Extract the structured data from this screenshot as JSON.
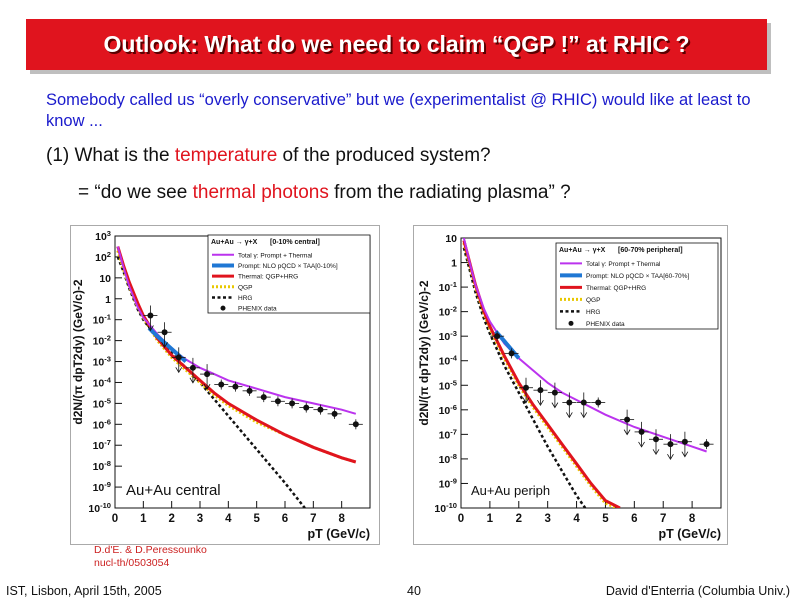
{
  "slide": {
    "title": "Outlook: What do we need to claim “QGP !” at RHIC ?",
    "intro": "Somebody called us “overly conservative” but we (experimentalist @ RHIC) would like at least to know ...",
    "q1_prefix": "(1) What is the ",
    "q1_highlight": "temperature",
    "q1_suffix": " of the produced system?",
    "q2_prefix": "= “do we see ",
    "q2_highlight": "thermal photons",
    "q2_suffix": " from the radiating plasma” ?",
    "credit_line1": "D.d'E. & D.Peressounko",
    "credit_line2": "nucl-th/0503054",
    "footer_left": "IST, Lisbon, April 15th, 2005",
    "footer_page": "40",
    "footer_right": "David d'Enterria (Columbia Univ.)",
    "colors": {
      "title_bg": "#e0141e",
      "intro_text": "#1a1acc",
      "highlight": "#e0141e"
    }
  },
  "chart_data": [
    {
      "type": "line",
      "panel_label": "Au+Au central",
      "xlabel": "pT (GeV/c)",
      "ylabel": "d2N/(π dpT2dy) (GeV/c)-2",
      "xlim": [
        0,
        9
      ],
      "ylim_log10": [
        -10,
        3
      ],
      "log_y": true,
      "x_ticks": [
        "0",
        "1",
        "2",
        "3",
        "4",
        "5",
        "6",
        "7",
        "8"
      ],
      "y_ticks": [
        "10-10",
        "10-9",
        "10-8",
        "10-7",
        "10-6",
        "10-5",
        "10-4",
        "10-3",
        "10-2",
        "10-1",
        "1",
        "10",
        "102",
        "103"
      ],
      "legend": {
        "header_main": "Au+Au → γ+X",
        "header_sub": "[0-10% central]",
        "entries": [
          "Total γ: Prompt + Thermal",
          "Prompt: NLO pQCD × TAA[0-10%]",
          "Thermal: QGP+HRG",
          "QGP",
          "HRG",
          "PHENIX data"
        ]
      },
      "series": [
        {
          "name": "Total γ: Prompt + Thermal",
          "color": "#bb33ee",
          "x": [
            0.1,
            0.3,
            0.5,
            0.8,
            1.0,
            1.5,
            2.0,
            2.5,
            3.0,
            3.5,
            4.0,
            5.0,
            6.0,
            7.0,
            8.0,
            8.5
          ],
          "logy": [
            2.5,
            1.5,
            0.6,
            -0.4,
            -0.9,
            -1.7,
            -2.4,
            -2.9,
            -3.3,
            -3.6,
            -3.9,
            -4.3,
            -4.7,
            -5.0,
            -5.3,
            -5.5
          ]
        },
        {
          "name": "Prompt: NLO pQCD × TAA[0-10%]",
          "color": "#1f77d4",
          "x": [
            1.2,
            1.5,
            2.0,
            2.5
          ],
          "logy": [
            -1.4,
            -1.8,
            -2.4,
            -3.0
          ]
        },
        {
          "name": "Thermal: QGP+HRG",
          "color": "#e0141e",
          "x": [
            0.1,
            0.3,
            0.5,
            0.8,
            1.0,
            1.5,
            2.0,
            2.5,
            3.0,
            3.5,
            4.0,
            5.0,
            6.0,
            7.0,
            8.0,
            8.5
          ],
          "logy": [
            2.5,
            1.6,
            0.8,
            -0.2,
            -0.8,
            -1.9,
            -2.7,
            -3.3,
            -3.9,
            -4.5,
            -5.0,
            -5.8,
            -6.5,
            -7.1,
            -7.6,
            -7.8
          ]
        },
        {
          "name": "QGP",
          "color": "#e8c800",
          "x": [
            0.1,
            0.3,
            0.5,
            0.8,
            1.0,
            1.5,
            2.0,
            2.5,
            3.0,
            3.5,
            4.0,
            5.0,
            6.0,
            7.0,
            8.0,
            8.5
          ],
          "logy": [
            2.3,
            1.4,
            0.6,
            -0.4,
            -0.9,
            -2.0,
            -2.8,
            -3.4,
            -4.0,
            -4.6,
            -5.1,
            -5.9,
            -6.5,
            -7.1,
            -7.6,
            -7.8
          ]
        },
        {
          "name": "HRG",
          "color": "#111111",
          "x": [
            0.1,
            0.3,
            0.5,
            0.8,
            1.0,
            1.5,
            2.0,
            2.5,
            3.0,
            3.5,
            4.0,
            5.0,
            6.0,
            6.7
          ],
          "logy": [
            2.0,
            1.3,
            0.5,
            -0.5,
            -1.0,
            -1.9,
            -2.6,
            -3.3,
            -4.0,
            -4.8,
            -5.6,
            -7.2,
            -8.8,
            -10.0
          ]
        }
      ],
      "data_points": {
        "name": "PHENIX data",
        "x": [
          1.25,
          1.75,
          2.25,
          2.75,
          3.25,
          3.75,
          4.25,
          4.75,
          5.25,
          5.75,
          6.25,
          6.75,
          7.25,
          7.75,
          8.5
        ],
        "logy": [
          -0.8,
          -1.6,
          -2.8,
          -3.3,
          -3.6,
          -4.1,
          -4.2,
          -4.4,
          -4.7,
          -4.9,
          -5.0,
          -5.2,
          -5.3,
          -5.5,
          -6.0
        ],
        "upper_limits": [
          1,
          1,
          1,
          1,
          1,
          0,
          0,
          0,
          0,
          0,
          0,
          0,
          0,
          0,
          0
        ]
      }
    },
    {
      "type": "line",
      "panel_label": "Au+Au periph",
      "xlabel": "pT (GeV/c)",
      "ylabel": "d2N/(π dpT2dy) (GeV/c)-2",
      "xlim": [
        0,
        9
      ],
      "ylim_log10": [
        -10,
        1
      ],
      "log_y": true,
      "x_ticks": [
        "0",
        "1",
        "2",
        "3",
        "4",
        "5",
        "6",
        "7",
        "8"
      ],
      "y_ticks": [
        "10-10",
        "10-9",
        "10-8",
        "10-7",
        "10-6",
        "10-5",
        "10-4",
        "10-3",
        "10-2",
        "10-1",
        "1",
        "10"
      ],
      "legend": {
        "header_main": "Au+Au → γ+X",
        "header_sub": "[60-70% peripheral]",
        "entries": [
          "Total γ: Prompt + Thermal",
          "Prompt: NLO pQCD × TAA[60-70%]",
          "Thermal: QGP+HRG",
          "QGP",
          "HRG",
          "PHENIX data"
        ]
      },
      "series": [
        {
          "name": "Total γ: Prompt + Thermal",
          "color": "#bb33ee",
          "x": [
            0.1,
            0.3,
            0.5,
            0.8,
            1.0,
            1.5,
            2.0,
            2.5,
            3.0,
            3.5,
            4.0,
            5.0,
            6.0,
            7.0,
            8.0,
            8.5
          ],
          "logy": [
            1.0,
            0.0,
            -0.9,
            -1.9,
            -2.4,
            -3.3,
            -3.9,
            -4.4,
            -4.9,
            -5.3,
            -5.6,
            -6.2,
            -6.7,
            -7.1,
            -7.5,
            -7.7
          ]
        },
        {
          "name": "Prompt: NLO pQCD × TAA[60-70%]",
          "color": "#1f77d4",
          "x": [
            1.2,
            1.5,
            2.0
          ],
          "logy": [
            -2.8,
            -3.2,
            -3.9
          ]
        },
        {
          "name": "Thermal: QGP+HRG",
          "color": "#e0141e",
          "x": [
            0.1,
            0.3,
            0.5,
            0.8,
            1.0,
            1.5,
            2.0,
            2.5,
            3.0,
            3.5,
            4.0,
            4.5,
            5.0,
            5.5
          ],
          "logy": [
            0.9,
            0.0,
            -0.9,
            -2.0,
            -2.6,
            -3.8,
            -4.9,
            -5.8,
            -6.6,
            -7.4,
            -8.2,
            -9.0,
            -9.7,
            -10.0
          ]
        },
        {
          "name": "QGP",
          "color": "#e8c800",
          "x": [
            0.1,
            0.3,
            0.5,
            0.8,
            1.0,
            1.5,
            2.0,
            2.5,
            3.0,
            3.5,
            4.0,
            4.5,
            5.0,
            5.4
          ],
          "logy": [
            0.8,
            -0.1,
            -1.0,
            -2.1,
            -2.7,
            -3.9,
            -5.0,
            -5.9,
            -6.7,
            -7.5,
            -8.3,
            -9.1,
            -9.8,
            -10.0
          ]
        },
        {
          "name": "HRG",
          "color": "#111111",
          "x": [
            0.1,
            0.3,
            0.5,
            0.8,
            1.0,
            1.5,
            2.0,
            2.5,
            3.0,
            3.5,
            4.0,
            4.3
          ],
          "logy": [
            0.6,
            -0.3,
            -1.2,
            -2.3,
            -2.9,
            -4.2,
            -5.3,
            -6.4,
            -7.5,
            -8.5,
            -9.5,
            -10.0
          ]
        }
      ],
      "data_points": {
        "name": "PHENIX data",
        "x": [
          1.25,
          1.75,
          2.25,
          2.75,
          3.25,
          3.75,
          4.25,
          4.75,
          5.75,
          6.25,
          6.75,
          7.25,
          7.75,
          8.5
        ],
        "logy": [
          -3.0,
          -3.7,
          -5.1,
          -5.2,
          -5.3,
          -5.7,
          -5.7,
          -5.7,
          -6.4,
          -6.9,
          -7.2,
          -7.4,
          -7.3,
          -7.4
        ],
        "upper_limits": [
          0,
          0,
          1,
          1,
          1,
          1,
          1,
          0,
          1,
          1,
          1,
          1,
          1,
          0
        ]
      }
    }
  ]
}
